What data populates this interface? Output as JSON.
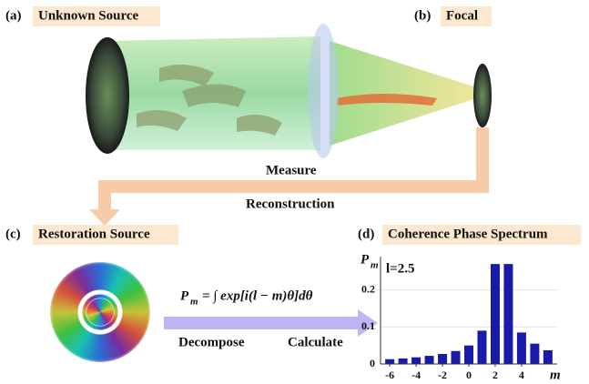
{
  "labels": {
    "a": "(a)",
    "a_title": "Unknown Source",
    "b": "(b)",
    "b_title": "Focal",
    "measure": "Measure",
    "reconstruction": "Reconstruction",
    "c": "(c)",
    "c_title": "Restoration Source",
    "d": "(d)",
    "d_title": "Coherence Phase Spectrum",
    "formula_symbol": "P",
    "formula_subscript": "m",
    "formula_rest": "= ∫ exp[i(l − m)θ]dθ",
    "decompose": "Decompose",
    "calculate": "Calculate"
  },
  "chart_data": {
    "type": "bar",
    "y_label": "P",
    "y_label_subscript": "m",
    "x_label": "m",
    "annotation": "l=2.5",
    "x": [
      -6,
      -5,
      -4,
      -3,
      -2,
      -1,
      0,
      1,
      2,
      3,
      4,
      5,
      6
    ],
    "values": [
      0.013,
      0.015,
      0.018,
      0.022,
      0.027,
      0.035,
      0.05,
      0.09,
      0.27,
      0.27,
      0.085,
      0.055,
      0.037
    ],
    "color": "#1a1aa8",
    "xlim": [
      -6.7,
      6.7
    ],
    "xticks": [
      -6,
      -4,
      -2,
      0,
      2,
      4
    ],
    "ylim": [
      0,
      0.29
    ],
    "yticks": [
      0,
      0.1,
      0.2
    ],
    "grid": true
  }
}
